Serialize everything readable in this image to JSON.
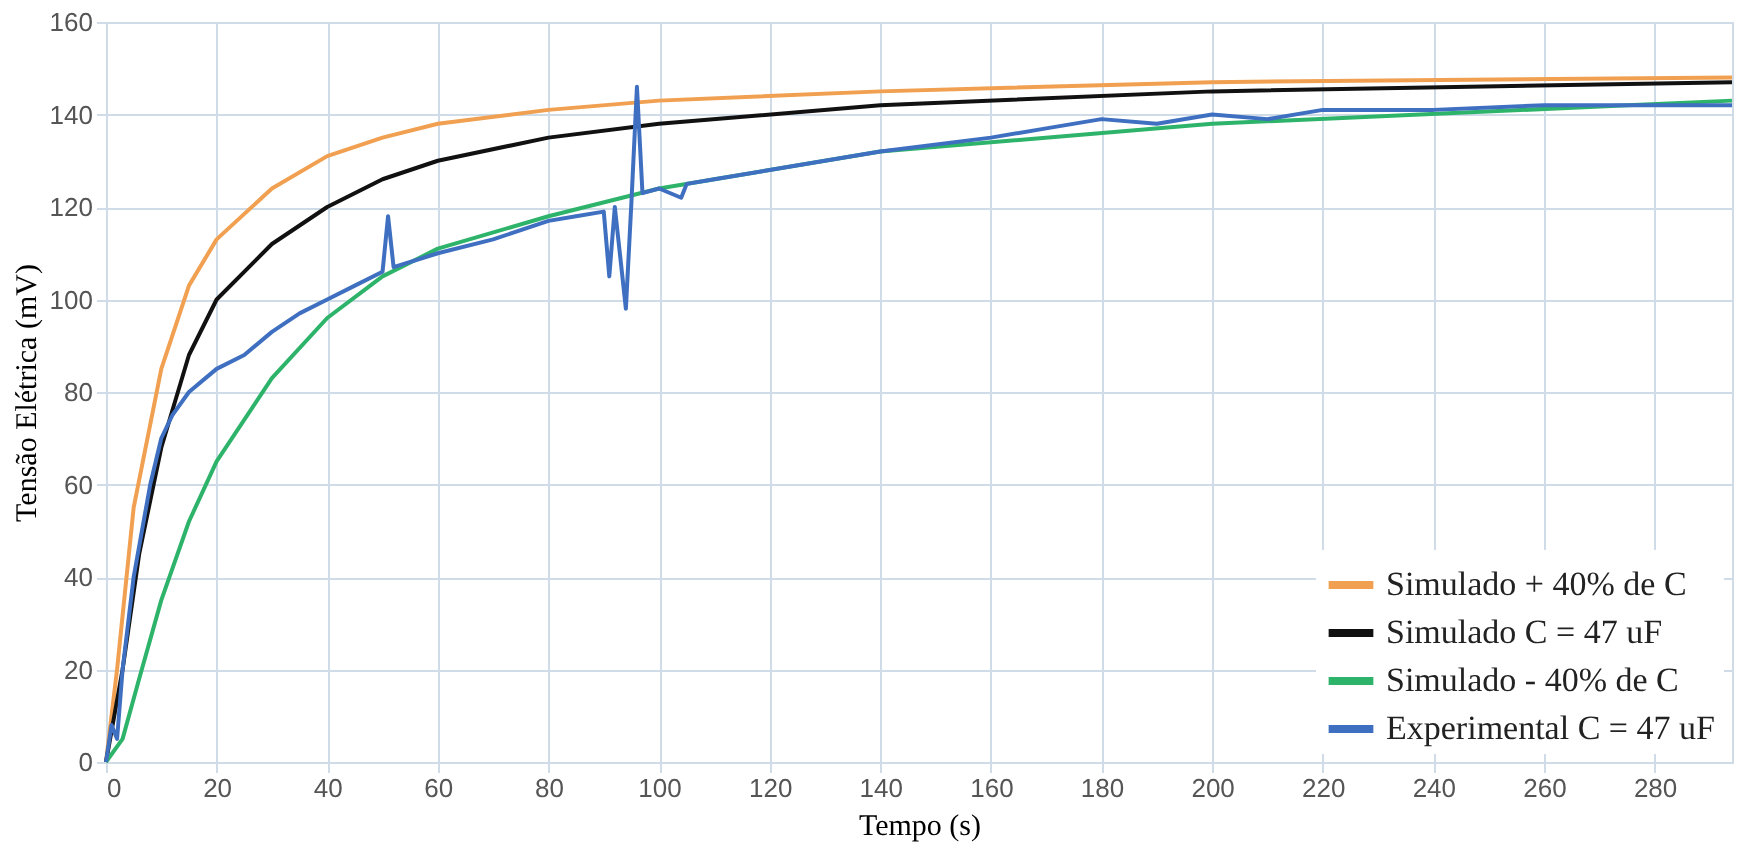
{
  "chart_data": {
    "type": "line",
    "xlabel": "Tempo (s)",
    "ylabel": "Tensão Elétrica (mV)",
    "xlim": [
      0,
      294
    ],
    "ylim": [
      0,
      160
    ],
    "xticks": [
      0,
      20,
      40,
      60,
      80,
      100,
      120,
      140,
      160,
      180,
      200,
      220,
      240,
      260,
      280
    ],
    "yticks": [
      0,
      20,
      40,
      60,
      80,
      100,
      120,
      140,
      160
    ],
    "grid": true,
    "legend": "bottom right",
    "marker": "none",
    "line_style": "solid",
    "series": [
      {
        "name": "Simulado + 40% de C",
        "color": "#f0a050",
        "x": [
          0,
          2,
          5,
          10,
          15,
          20,
          30,
          40,
          50,
          60,
          80,
          100,
          140,
          200,
          294
        ],
        "values": [
          0,
          20,
          55,
          85,
          103,
          113,
          124,
          131,
          135,
          138,
          141,
          143,
          145,
          147,
          148
        ]
      },
      {
        "name": "Simulado C = 47 uF",
        "color": "#111111",
        "x": [
          0,
          3,
          6,
          10,
          15,
          20,
          30,
          40,
          50,
          60,
          80,
          100,
          140,
          200,
          294
        ],
        "values": [
          0,
          20,
          45,
          68,
          88,
          100,
          112,
          120,
          126,
          130,
          135,
          138,
          142,
          145,
          147
        ]
      },
      {
        "name": "Simulado - 40% de C",
        "color": "#2db36a",
        "x": [
          0,
          3,
          6,
          10,
          15,
          20,
          30,
          40,
          50,
          60,
          80,
          100,
          140,
          200,
          294
        ],
        "values": [
          0,
          5,
          18,
          35,
          52,
          65,
          83,
          96,
          105,
          111,
          118,
          124,
          132,
          138,
          143
        ]
      },
      {
        "name": "Experimental C = 47 uF",
        "color": "#3f6fc0",
        "x": [
          0,
          1,
          2,
          3,
          5,
          8,
          10,
          12,
          15,
          18,
          20,
          25,
          30,
          35,
          40,
          45,
          50,
          51,
          52,
          60,
          70,
          80,
          85,
          90,
          91,
          92,
          94,
          95,
          96,
          97,
          100,
          104,
          105,
          110,
          120,
          130,
          140,
          160,
          170,
          180,
          190,
          200,
          210,
          220,
          240,
          260,
          280,
          294
        ],
        "values": [
          0,
          8,
          5,
          20,
          40,
          60,
          70,
          75,
          80,
          83,
          85,
          88,
          93,
          97,
          100,
          103,
          106,
          118,
          107,
          110,
          113,
          117,
          118,
          119,
          105,
          120,
          98,
          121,
          146,
          123,
          124,
          122,
          125,
          126,
          128,
          130,
          132,
          135,
          137,
          139,
          138,
          140,
          139,
          141,
          141,
          142,
          142,
          142
        ]
      }
    ]
  }
}
